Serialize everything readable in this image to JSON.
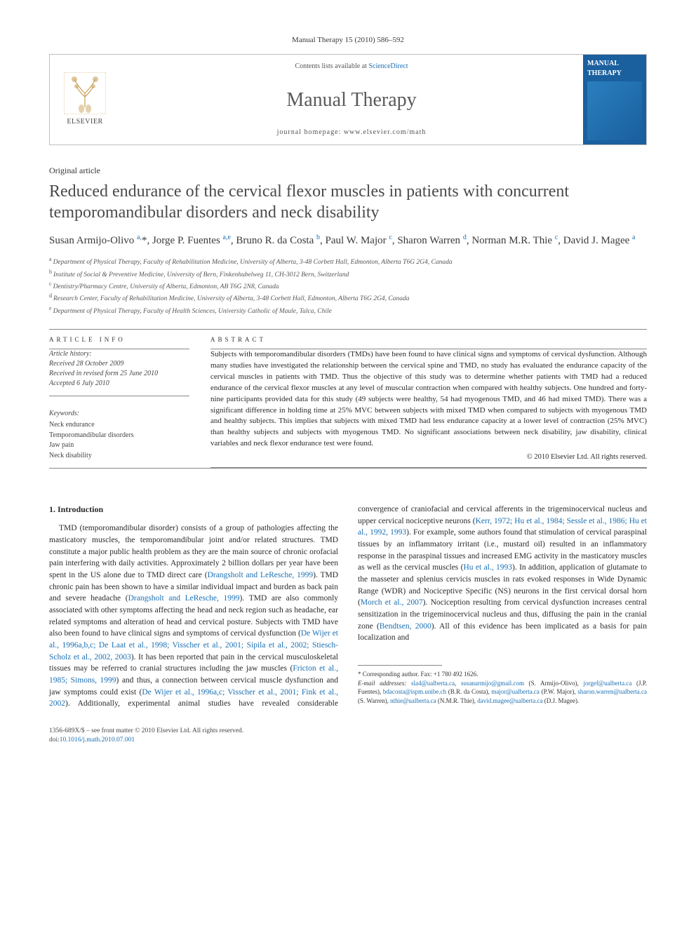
{
  "journal_ref": "Manual Therapy 15 (2010) 586–592",
  "header": {
    "elsevier_label": "ELSEVIER",
    "contents_prefix": "Contents lists available at ",
    "contents_link": "ScienceDirect",
    "journal_name": "Manual Therapy",
    "homepage_label": "journal homepage: www.elsevier.com/math",
    "cover_title": "MANUAL THERAPY"
  },
  "article_type": "Original article",
  "title": "Reduced endurance of the cervical flexor muscles in patients with concurrent temporomandibular disorders and neck disability",
  "authors_html": "Susan Armijo-Olivo <sup>a,</sup>*, Jorge P. Fuentes <sup>a,e</sup>, Bruno R. da Costa <sup>b</sup>, Paul W. Major <sup>c</sup>, Sharon Warren <sup>d</sup>, Norman M.R. Thie <sup>c</sup>, David J. Magee <sup>a</sup>",
  "affiliations": [
    "a Department of Physical Therapy, Faculty of Rehabilitation Medicine, University of Alberta, 3-48 Corbett Hall, Edmonton, Alberta T6G 2G4, Canada",
    "b Institute of Social & Preventive Medicine, University of Bern, Finkenhubelweg 11, CH-3012 Bern, Switzerland",
    "c Dentistry/Pharmacy Centre, University of Alberta, Edmonton, AB T6G 2N8, Canada",
    "d Research Center, Faculty of Rehabilitation Medicine, University of Alberta, 3-48 Corbett Hall, Edmonton, Alberta T6G 2G4, Canada",
    "e Department of Physical Therapy, Faculty of Health Sciences, University Catholic of Maule, Talca, Chile"
  ],
  "info_head": "ARTICLE INFO",
  "abs_head": "ABSTRACT",
  "history": {
    "label": "Article history:",
    "received": "Received 28 October 2009",
    "revised": "Received in revised form 25 June 2010",
    "accepted": "Accepted 6 July 2010"
  },
  "keywords_label": "Keywords:",
  "keywords": [
    "Neck endurance",
    "Temporomandibular disorders",
    "Jaw pain",
    "Neck disability"
  ],
  "abstract": "Subjects with temporomandibular disorders (TMDs) have been found to have clinical signs and symptoms of cervical dysfunction. Although many studies have investigated the relationship between the cervical spine and TMD, no study has evaluated the endurance capacity of the cervical muscles in patients with TMD. Thus the objective of this study was to determine whether patients with TMD had a reduced endurance of the cervical flexor muscles at any level of muscular contraction when compared with healthy subjects. One hundred and forty-nine participants provided data for this study (49 subjects were healthy, 54 had myogenous TMD, and 46 had mixed TMD). There was a significant difference in holding time at 25% MVC between subjects with mixed TMD when compared to subjects with myogenous TMD and healthy subjects. This implies that subjects with mixed TMD had less endurance capacity at a lower level of contraction (25% MVC) than healthy subjects and subjects with myogenous TMD. No significant associations between neck disability, jaw disability, clinical variables and neck flexor endurance test were found.",
  "copyright": "© 2010 Elsevier Ltd. All rights reserved.",
  "section1_head": "1. Introduction",
  "body_para": "TMD (temporomandibular disorder) consists of a group of pathologies affecting the masticatory muscles, the temporomandibular joint and/or related structures. TMD constitute a major public health problem as they are the main source of chronic orofacial pain interfering with daily activities. Approximately 2 billion dollars per year have been spent in the US alone due to TMD direct care (Drangsholt and LeResche, 1999). TMD chronic pain has been shown to have a similar individual impact and burden as back pain and severe headache (Drangsholt and LeResche, 1999). TMD are also commonly associated with other symptoms affecting the head and neck region such as headache, ear related symptoms and alteration of head and cervical posture. Subjects with TMD have also been found to have clinical signs and symptoms of cervical dysfunction (De Wijer et al., 1996a,b,c; De Laat et al., 1998; Visscher et al., 2001; Sipila et al., 2002; Stiesch-Scholz et al., 2002, 2003). It has been reported that pain in the cervical musculoskeletal tissues may be referred to cranial structures including the jaw muscles (Fricton et al., 1985; Simons, 1999) and thus, a connection between cervical muscle dysfunction and jaw symptoms could exist (De Wijer et al., 1996a,c; Visscher et al., 2001; Fink et al., 2002). Additionally, experimental animal studies have revealed considerable convergence of craniofacial and cervical afferents in the trigeminocervical nucleus and upper cervical nociceptive neurons (Kerr, 1972; Hu et al., 1984; Sessle et al., 1986; Hu et al., 1992, 1993). For example, some authors found that stimulation of cervical paraspinal tissues by an inflammatory irritant (i.e., mustard oil) resulted in an inflammatory response in the paraspinal tissues and increased EMG activity in the masticatory muscles as well as the cervical muscles (Hu et al., 1993). In addition, application of glutamate to the masseter and splenius cervicis muscles in rats evoked responses in Wide Dynamic Range (WDR) and Nociceptive Specific (NS) neurons in the first cervical dorsal horn (Morch et al., 2007). Nociception resulting from cervical dysfunction increases central sensitization in the trigeminocervical nucleus and thus, diffusing the pain in the cranial zone (Bendtsen, 2000). All of this evidence has been implicated as a basis for pain localization and",
  "footnote": {
    "corr": "* Corresponding author. Fax: +1 780 492 1626.",
    "emails_label": "E-mail addresses:",
    "emails": "sla4@ualberta.ca, susanarmijo@gmail.com (S. Armijo-Olivo), jorgef@ualberta.ca (J.P. Fuentes), bdacosta@ispm.unibe.ch (B.R. da Costa), major@ualberta.ca (P.W. Major), sharon.warren@ualberta.ca (S. Warren), nthie@ualberta.ca (N.M.R. Thie), david.magee@ualberta.ca (D.J. Magee)."
  },
  "footer": {
    "left": "1356-689X/$ – see front matter © 2010 Elsevier Ltd. All rights reserved.",
    "doi_label": "doi:",
    "doi": "10.1016/j.math.2010.07.001"
  },
  "colors": {
    "link": "#1a6fb3",
    "rule": "#888888",
    "heading": "#4a4a4a",
    "cover_bg": "#1a5f9e"
  }
}
